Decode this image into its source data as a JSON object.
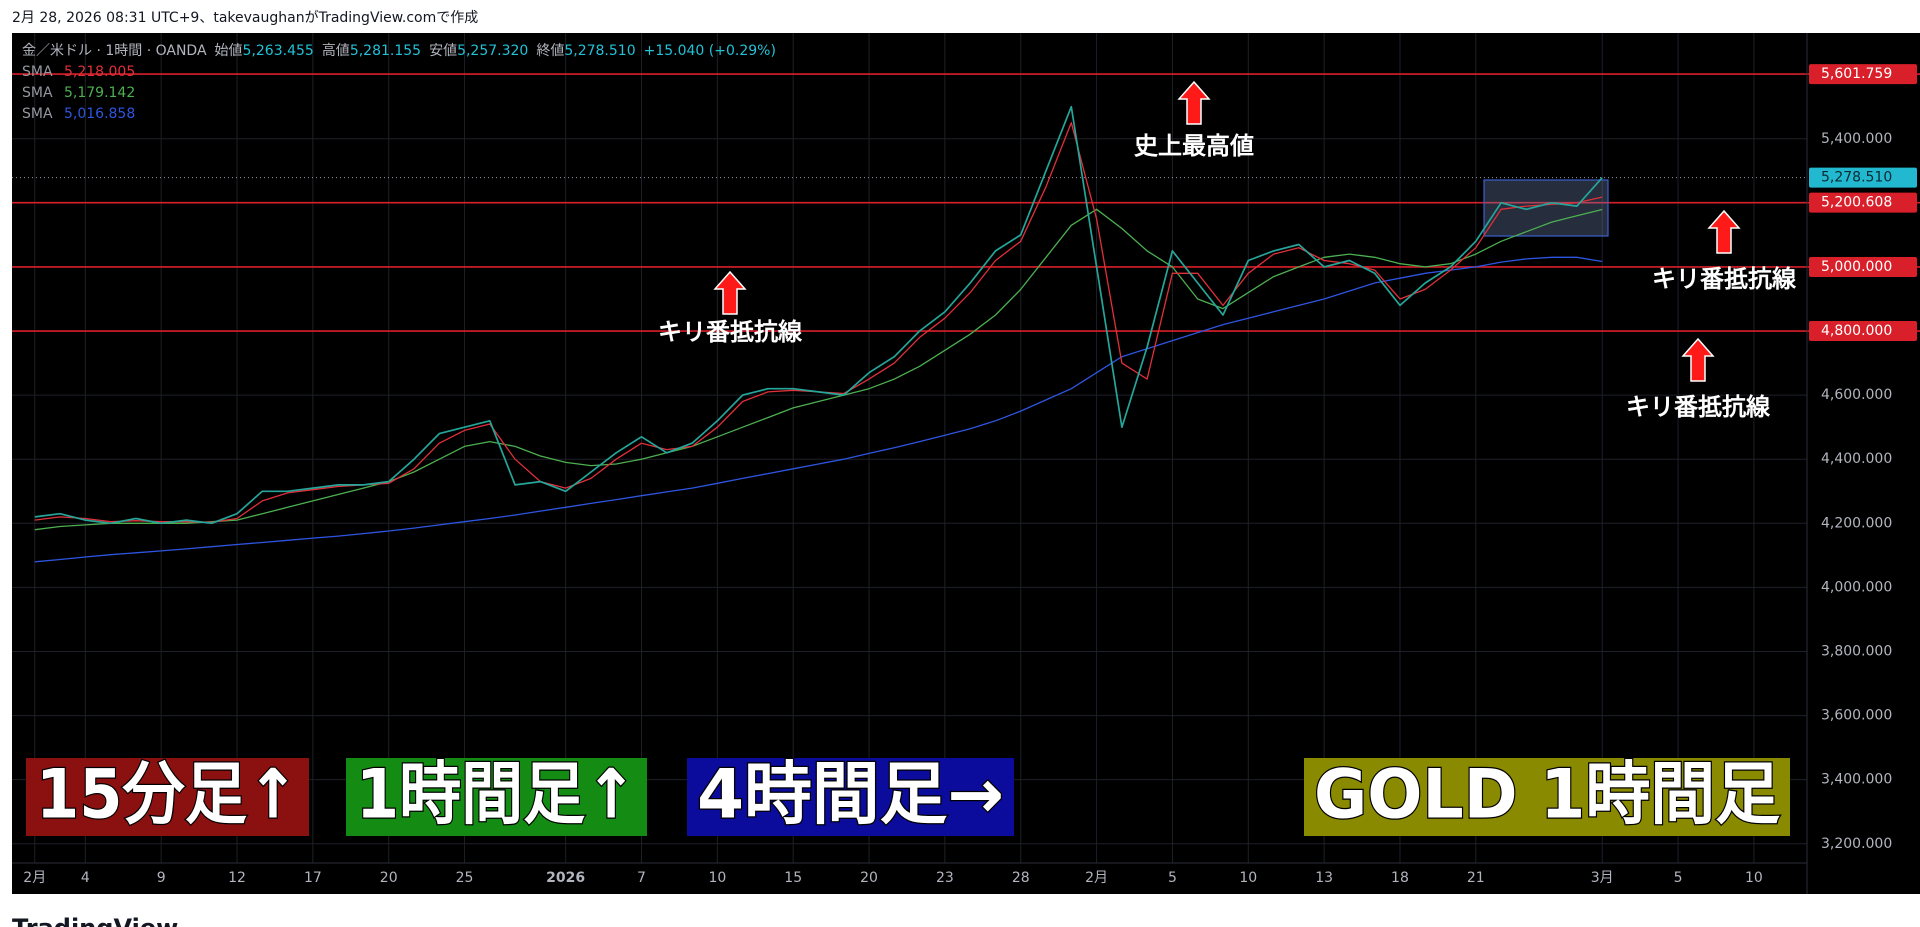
{
  "header": {
    "caption": "2月 28, 2026 08:31 UTC+9、takevaughanがTradingView.comで作成"
  },
  "chart_data": {
    "type": "line",
    "symbol": "金／米ドル · 1時間 · OANDA",
    "ohlc": [
      {
        "label": "始値",
        "value": "5,263.455"
      },
      {
        "label": "高値",
        "value": "5,281.155"
      },
      {
        "label": "安値",
        "value": "5,257.320"
      },
      {
        "label": "終値",
        "value": "5,278.510"
      }
    ],
    "change": "+15.040 (+0.29%)",
    "categories": [
      "2月",
      null,
      "4",
      null,
      null,
      "9",
      null,
      null,
      "12",
      null,
      null,
      "17",
      null,
      null,
      "20",
      null,
      null,
      "25",
      null,
      null,
      null,
      "2026",
      null,
      null,
      "7",
      null,
      null,
      "10",
      null,
      null,
      "15",
      null,
      null,
      "20",
      null,
      null,
      "23",
      null,
      null,
      "28",
      null,
      null,
      "2月",
      null,
      null,
      "5",
      null,
      null,
      "10",
      null,
      null,
      "13",
      null,
      null,
      "18",
      null,
      null,
      "21",
      null,
      null,
      null,
      null,
      "3月",
      null,
      null,
      "5",
      null,
      null,
      "10",
      null,
      null
    ],
    "series": [
      {
        "color": "#26a69a",
        "values": [
          4220,
          4230,
          4210,
          4200,
          4215,
          4200,
          4210,
          4200,
          4230,
          4300,
          4300,
          4310,
          4320,
          4320,
          4330,
          4400,
          4480,
          4500,
          4520,
          4320,
          4330,
          4300,
          4360,
          4420,
          4470,
          4420,
          4450,
          4520,
          4600,
          4620,
          4620,
          4610,
          4600,
          4670,
          4720,
          4800,
          4860,
          4950,
          5050,
          5100,
          5300,
          5500,
          5000,
          4500,
          4750,
          5050,
          4950,
          4850,
          5020,
          5050,
          5070,
          5000,
          5020,
          4980,
          4880,
          4950,
          5000,
          5080,
          5200,
          5180,
          5200,
          5190,
          5278.51,
          null,
          null,
          null,
          null,
          null,
          null,
          null,
          null
        ]
      },
      {
        "name": "SMA",
        "color": "#e0303a",
        "legend_value": "5,218.005",
        "values": [
          4210,
          4220,
          4215,
          4205,
          4208,
          4205,
          4205,
          4203,
          4215,
          4270,
          4295,
          4305,
          4315,
          4320,
          4325,
          4370,
          4450,
          4490,
          4510,
          4400,
          4330,
          4310,
          4340,
          4400,
          4450,
          4430,
          4440,
          4500,
          4580,
          4610,
          4615,
          4610,
          4605,
          4650,
          4700,
          4780,
          4840,
          4920,
          5020,
          5080,
          5250,
          5450,
          5150,
          4700,
          4650,
          4980,
          4980,
          4880,
          4980,
          5040,
          5060,
          5020,
          5010,
          4990,
          4900,
          4930,
          4990,
          5060,
          5180,
          5190,
          5195,
          5200,
          5218.005,
          null,
          null,
          null,
          null,
          null,
          null,
          null,
          null
        ]
      },
      {
        "name": "SMA",
        "color": "#4caf50",
        "legend_value": "5,179.142",
        "values": [
          4180,
          4190,
          4195,
          4200,
          4200,
          4200,
          4200,
          4205,
          4210,
          4230,
          4250,
          4270,
          4290,
          4310,
          4330,
          4360,
          4400,
          4440,
          4455,
          4440,
          4410,
          4390,
          4380,
          4385,
          4400,
          4420,
          4440,
          4470,
          4500,
          4530,
          4560,
          4580,
          4600,
          4620,
          4650,
          4690,
          4740,
          4790,
          4850,
          4930,
          5030,
          5130,
          5180,
          5120,
          5050,
          5000,
          4900,
          4870,
          4920,
          4970,
          5000,
          5030,
          5040,
          5030,
          5010,
          5000,
          5010,
          5040,
          5080,
          5110,
          5140,
          5160,
          5179.142,
          null,
          null,
          null,
          null,
          null,
          null,
          null,
          null
        ]
      },
      {
        "name": "SMA",
        "color": "#2e55e0",
        "legend_value": "5,016.858",
        "values": [
          4080,
          4087,
          4095,
          4102,
          4108,
          4114,
          4120,
          4127,
          4134,
          4140,
          4147,
          4154,
          4160,
          4168,
          4176,
          4185,
          4195,
          4205,
          4215,
          4226,
          4238,
          4250,
          4262,
          4274,
          4286,
          4298,
          4310,
          4325,
          4340,
          4355,
          4370,
          4385,
          4400,
          4418,
          4436,
          4455,
          4475,
          4495,
          4520,
          4550,
          4585,
          4620,
          4670,
          4720,
          4745,
          4770,
          4795,
          4820,
          4840,
          4860,
          4880,
          4900,
          4925,
          4950,
          4965,
          4980,
          4990,
          5000,
          5015,
          5025,
          5030,
          5030,
          5016.858,
          null,
          null,
          null,
          null,
          null,
          null,
          null,
          null
        ]
      }
    ],
    "ylim": [
      3140,
      5730
    ],
    "yticks": [
      {
        "value": 3200,
        "label": "3,200.000"
      },
      {
        "value": 3400,
        "label": "3,400.000"
      },
      {
        "value": 3600,
        "label": "3,600.000"
      },
      {
        "value": 3800,
        "label": "3,800.000"
      },
      {
        "value": 4000,
        "label": "4,000.000"
      },
      {
        "value": 4200,
        "label": "4,200.000"
      },
      {
        "value": 4400,
        "label": "4,400.000"
      },
      {
        "value": 4600,
        "label": "4,600.000"
      },
      {
        "value": 4800,
        "label": "4,800.000"
      },
      {
        "value": 5000,
        "label": "5,000.000"
      },
      {
        "value": 5200,
        "label": "5,200.000"
      },
      {
        "value": 5400,
        "label": "5,400.000"
      }
    ],
    "levels": [
      {
        "value": 5601.759,
        "label": "5,601.759"
      },
      {
        "value": 5200.608,
        "label": "5,200.608"
      },
      {
        "value": 5000,
        "label": "5,000.000"
      },
      {
        "value": 4800,
        "label": "4,800.000"
      }
    ],
    "level_color": "#d81f2a",
    "current_price": {
      "value": 5278.51,
      "label": "5,278.510",
      "color": "#22b8cf"
    },
    "grid": true
  },
  "annotations": [
    {
      "text": "史上最高値"
    },
    {
      "text": "キリ番抵抗線"
    },
    {
      "text": "キリ番抵抗線"
    },
    {
      "text": "キリ番抵抗線"
    }
  ],
  "banners": [
    {
      "text": "15分足↑",
      "color": "#8b1010"
    },
    {
      "text": "1時間足↑",
      "color": "#148c14"
    },
    {
      "text": "4時間足→",
      "color": "#0b0b9c"
    },
    {
      "text": "GOLD 1時間足",
      "color": "#8a8a00"
    }
  ],
  "footer": {
    "logo": "TradingView"
  }
}
